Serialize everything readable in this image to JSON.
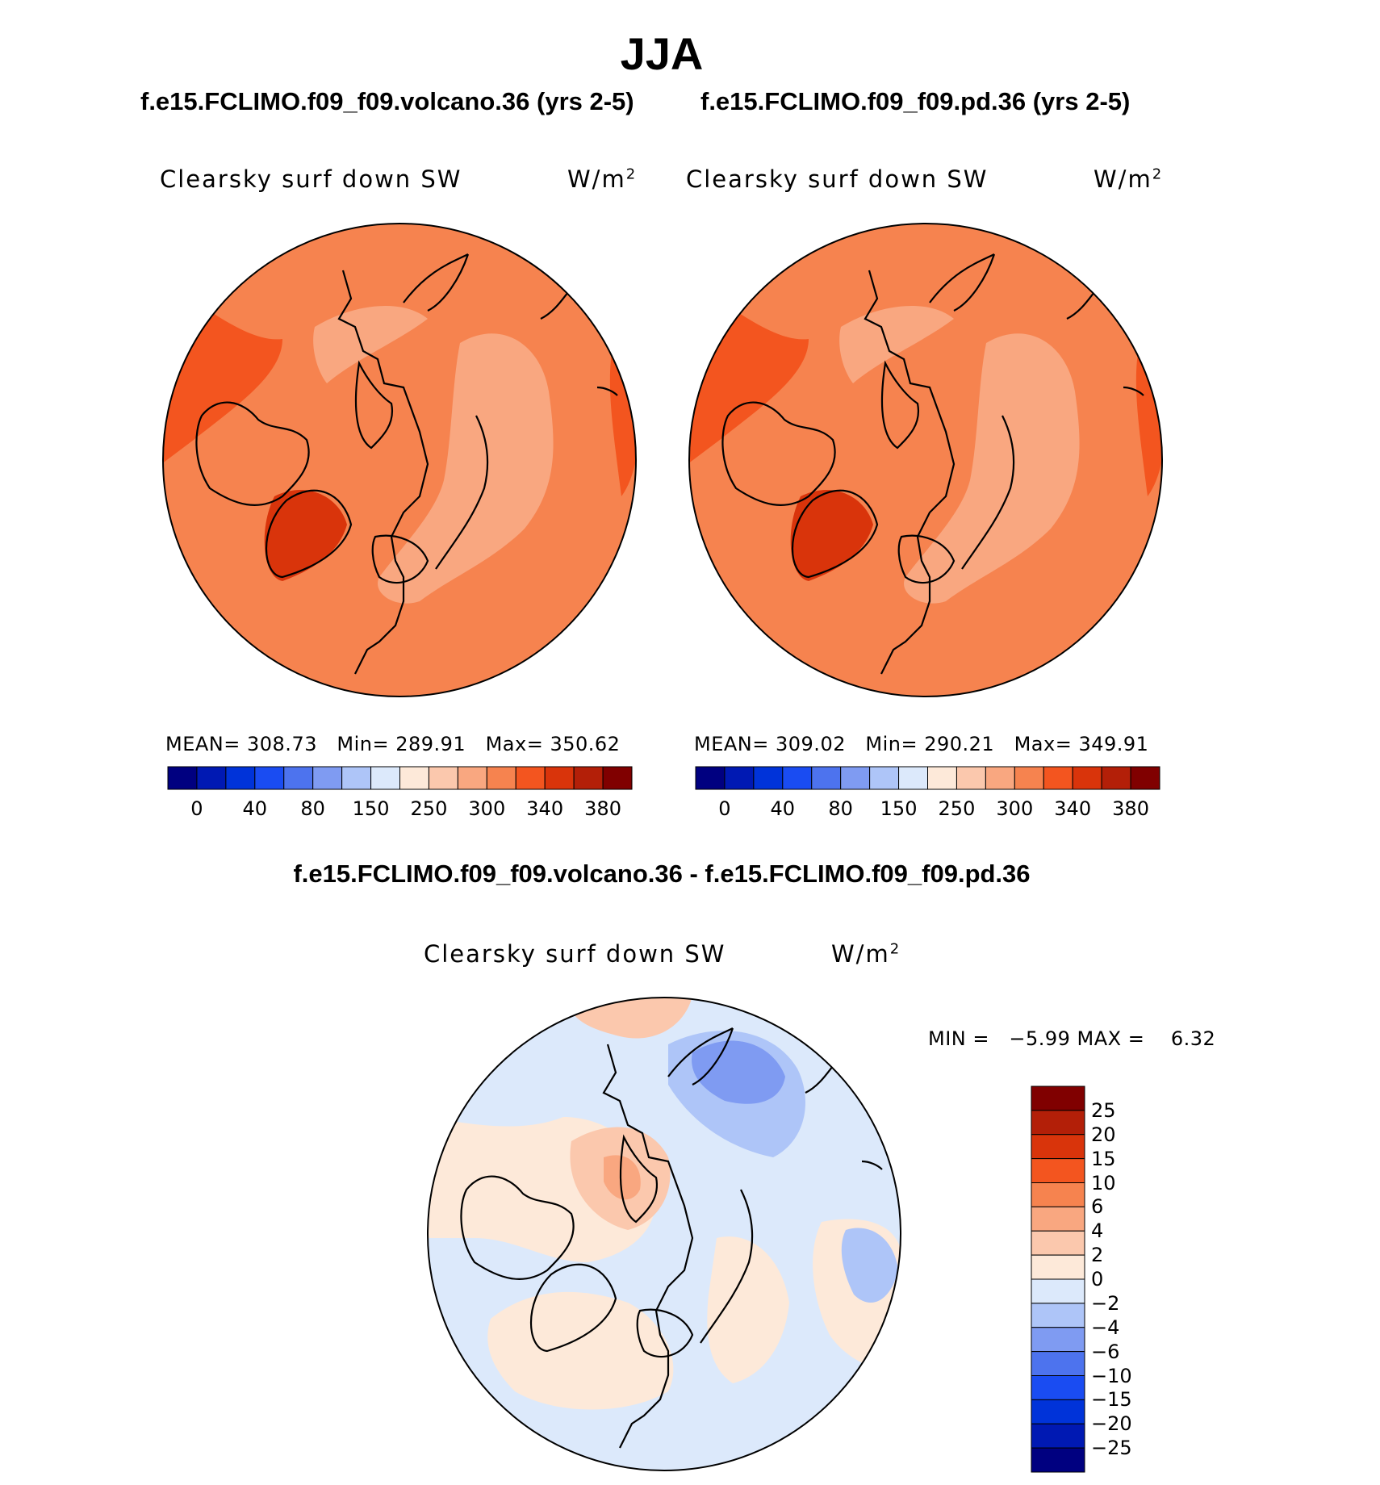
{
  "season": "JJA",
  "panels": [
    {
      "case_title": "f.e15.FCLIMO.f09_f09.volcano.36 (yrs 2-5)",
      "var_label": "Clearsky surf down SW",
      "units": "W/m",
      "units_sup": "2",
      "stats": {
        "mean_label": "MEAN=",
        "mean": "308.73",
        "min_label": "Min=",
        "min": "289.91",
        "max_label": "Max=",
        "max": "350.62"
      }
    },
    {
      "case_title": "f.e15.FCLIMO.f09_f09.pd.36 (yrs 2-5)",
      "var_label": "Clearsky surf down SW",
      "units": "W/m",
      "units_sup": "2",
      "stats": {
        "mean_label": "MEAN=",
        "mean": "309.02",
        "min_label": "Min=",
        "min": "290.21",
        "max_label": "Max=",
        "max": "349.91"
      }
    }
  ],
  "diff": {
    "title": "f.e15.FCLIMO.f09_f09.volcano.36 - f.e15.FCLIMO.f09_f09.pd.36",
    "var_label": "Clearsky surf down SW",
    "units": "W/m",
    "units_sup": "2",
    "minmax_text": "MIN =   −5.99 MAX =    6.32"
  },
  "colors": {
    "abs_scale": [
      "#000080",
      "#0019b3",
      "#0033d9",
      "#1a4cf2",
      "#4d73ee",
      "#7f9bf2",
      "#aec5f8",
      "#dce9fb",
      "#fde9d9",
      "#fbc8ad",
      "#f9a780",
      "#f6834f",
      "#f3551f",
      "#d9340b",
      "#b31f08",
      "#800000"
    ],
    "diff_scale": [
      "#000080",
      "#0019b3",
      "#0033d9",
      "#1a4cf2",
      "#4d73ee",
      "#7f9bf2",
      "#aec5f8",
      "#dce9fb",
      "#fde9d9",
      "#fbc8ad",
      "#f9a780",
      "#f6834f",
      "#f3551f",
      "#d9340b",
      "#b31f08",
      "#800000"
    ]
  },
  "chart_data": [
    {
      "type": "heatmap",
      "projection": "north-polar-stereographic",
      "title": "f.e15.FCLIMO.f09_f09.volcano.36 (yrs 2-5)",
      "variable": "Clearsky surf down SW",
      "units": "W/m2",
      "mean": 308.73,
      "min": 289.91,
      "max": 350.62,
      "colorbar_ticks": [
        "0",
        "40",
        "80",
        "150",
        "250",
        "300",
        "340",
        "380"
      ]
    },
    {
      "type": "heatmap",
      "projection": "north-polar-stereographic",
      "title": "f.e15.FCLIMO.f09_f09.pd.36 (yrs 2-5)",
      "variable": "Clearsky surf down SW",
      "units": "W/m2",
      "mean": 309.02,
      "min": 290.21,
      "max": 349.91,
      "colorbar_ticks": [
        "0",
        "40",
        "80",
        "150",
        "250",
        "300",
        "340",
        "380"
      ]
    },
    {
      "type": "heatmap",
      "projection": "north-polar-stereographic",
      "title": "f.e15.FCLIMO.f09_f09.volcano.36 - f.e15.FCLIMO.f09_f09.pd.36",
      "variable": "Clearsky surf down SW",
      "units": "W/m2",
      "min": -5.99,
      "max": 6.32,
      "colorbar_ticks": [
        "25",
        "20",
        "15",
        "10",
        "6",
        "4",
        "2",
        "0",
        "−2",
        "−4",
        "−6",
        "−10",
        "−15",
        "−20",
        "−25"
      ]
    }
  ]
}
